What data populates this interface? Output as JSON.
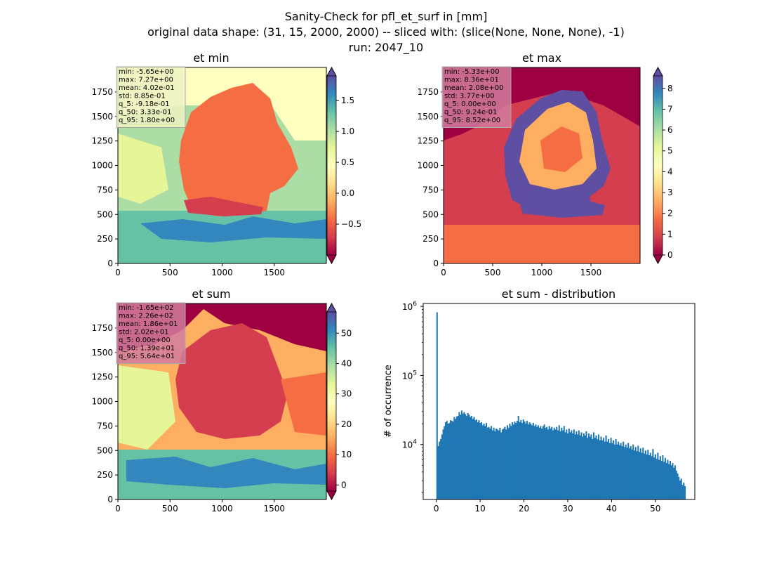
{
  "figure": {
    "title_lines": [
      "Sanity-Check for pfl_et_surf in [mm]",
      "original data shape: (31, 15, 2000, 2000) -- sliced with: (slice(None, None, None), -1)",
      "run: 2047_10"
    ]
  },
  "chart_data": [
    {
      "type": "heatmap",
      "title": "et min",
      "colormap": "Spectral",
      "x_ticks": [
        0,
        500,
        1000,
        1500
      ],
      "y_ticks": [
        0,
        250,
        500,
        750,
        1000,
        1250,
        1500,
        1750
      ],
      "xlim": [
        0,
        2000
      ],
      "ylim": [
        0,
        2000
      ],
      "colorbar": {
        "vmin": -1.0,
        "vmax": 1.9,
        "ticks": [
          -0.5,
          0.0,
          0.5,
          1.0,
          1.5
        ],
        "tick_labels": [
          "−0.5",
          "0.0",
          "0.5",
          "1.0",
          "1.5"
        ],
        "extend": "both"
      },
      "stats": [
        "min: -5.65e+00",
        "max: 7.27e+00",
        "mean: 4.02e-01",
        "std: 8.85e-01",
        "q_5: -9.18e-01",
        "q_50: 3.33e-01",
        "q_95: 1.80e+00"
      ],
      "stats_box_color": "#ecf2c2"
    },
    {
      "type": "heatmap",
      "title": "et max",
      "colormap": "Spectral",
      "x_ticks": [
        0,
        500,
        1000,
        1500
      ],
      "y_ticks": [
        0,
        250,
        500,
        750,
        1000,
        1250,
        1500,
        1750
      ],
      "xlim": [
        0,
        2000
      ],
      "ylim": [
        0,
        2000
      ],
      "colorbar": {
        "vmin": 0.0,
        "vmax": 8.6,
        "ticks": [
          0,
          1,
          2,
          3,
          4,
          5,
          6,
          7,
          8
        ],
        "tick_labels": [
          "0",
          "1",
          "2",
          "3",
          "4",
          "5",
          "6",
          "7",
          "8"
        ],
        "extend": "both"
      },
      "stats": [
        "min: -5.33e+00",
        "max: 8.36e+01",
        "mean: 2.08e+00",
        "std: 3.77e+00",
        "q_5: 0.00e+00",
        "q_50: 9.24e-01",
        "q_95: 8.52e+00"
      ],
      "stats_box_color": "#d27d9e"
    },
    {
      "type": "heatmap",
      "title": "et sum",
      "colormap": "Spectral",
      "x_ticks": [
        0,
        500,
        1000,
        1500
      ],
      "y_ticks": [
        0,
        250,
        500,
        750,
        1000,
        1250,
        1500,
        1750
      ],
      "xlim": [
        0,
        2000
      ],
      "ylim": [
        0,
        2000
      ],
      "colorbar": {
        "vmin": -2.0,
        "vmax": 57.0,
        "ticks": [
          0,
          10,
          20,
          30,
          40,
          50
        ],
        "tick_labels": [
          "0",
          "10",
          "20",
          "30",
          "40",
          "50"
        ],
        "extend": "both"
      },
      "stats": [
        "min: -1.65e+02",
        "max: 2.26e+02",
        "mean: 1.86e+01",
        "std: 2.02e+01",
        "q_5: 0.00e+00",
        "q_50: 1.39e+01",
        "q_95: 5.64e+01"
      ],
      "stats_box_color": "#d27d9e"
    },
    {
      "type": "bar",
      "title": "et sum - distribution",
      "ylabel": "# of occurrence",
      "y_scale": "log",
      "xlim": [
        -3,
        59
      ],
      "ylim": [
        1600,
        1100000
      ],
      "x_ticks": [
        0,
        10,
        20,
        30,
        40,
        50
      ],
      "y_ticks": [
        {
          "value": 10000,
          "label": "10",
          "exp": "4"
        },
        {
          "value": 100000,
          "label": "10",
          "exp": "5"
        },
        {
          "value": 1000000,
          "label": "10",
          "exp": "6"
        }
      ],
      "bin_start": 0.0,
      "bin_width": 0.2816,
      "bar_color": "#1f77b4",
      "counts": [
        820000,
        9500,
        11000,
        12000,
        14000,
        16500,
        18500,
        21000,
        22000,
        20000,
        20500,
        22500,
        22000,
        21500,
        25000,
        23500,
        25500,
        26000,
        29500,
        27000,
        31000,
        28000,
        29500,
        27500,
        26000,
        28500,
        27000,
        25000,
        26000,
        23500,
        25000,
        22500,
        23000,
        21000,
        22500,
        20500,
        21000,
        19000,
        20000,
        18500,
        20500,
        17500,
        18000,
        17000,
        18500,
        16000,
        17500,
        15500,
        17000,
        16500,
        16000,
        17500,
        15000,
        16500,
        17000,
        18000,
        16500,
        19000,
        17500,
        20000,
        18500,
        21000,
        19500,
        21500,
        20500,
        22000,
        26000,
        21000,
        22500,
        20500,
        23000,
        21500,
        20000,
        22000,
        19500,
        21000,
        20000,
        19000,
        20500,
        18500,
        19500,
        18000,
        19000,
        17500,
        18500,
        17000,
        18500,
        19500,
        17500,
        18000,
        16500,
        18500,
        17000,
        18000,
        16000,
        17500,
        16500,
        18000,
        16000,
        19000,
        15500,
        17500,
        16000,
        18500,
        15000,
        16500,
        14500,
        17000,
        15000,
        16000,
        14500,
        16500,
        14000,
        15500,
        14000,
        16000,
        13500,
        15000,
        13000,
        14500,
        13500,
        15500,
        12500,
        14500,
        13000,
        14000,
        12000,
        15000,
        12500,
        13500,
        12000,
        14000,
        11500,
        13000,
        11500,
        12500,
        11000,
        13500,
        11000,
        12000,
        10500,
        12500,
        10500,
        11500,
        10000,
        12000,
        10000,
        11000,
        9800,
        10500,
        9500,
        11000,
        9200,
        10000,
        9000,
        10500,
        8800,
        9500,
        8500,
        10000,
        8200,
        9200,
        8000,
        9600,
        7800,
        8800,
        7600,
        9000,
        7400,
        8200,
        7200,
        8400,
        7000,
        7600,
        6800,
        8600,
        6500,
        7200,
        6200,
        7600,
        6000,
        6800,
        5800,
        7000,
        5600,
        6400,
        5400,
        6000,
        5200,
        5800,
        5000,
        5400,
        4600,
        5000,
        4200,
        3800,
        3400,
        3000,
        3200,
        2600,
        2800,
        2500
      ]
    }
  ]
}
